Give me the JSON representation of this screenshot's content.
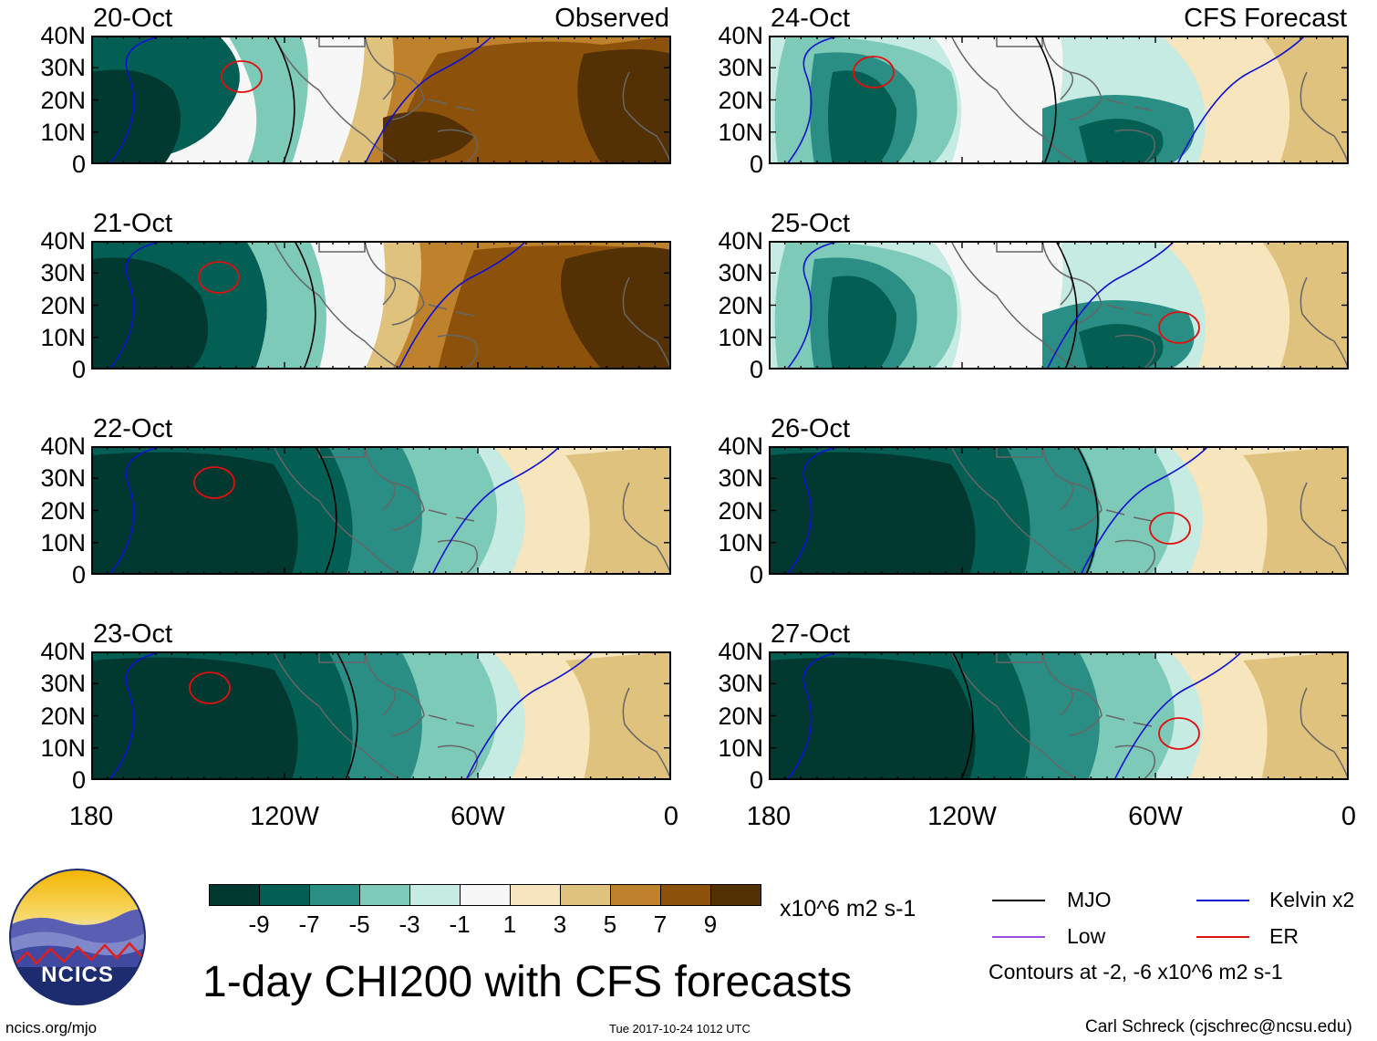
{
  "panels": [
    {
      "date": "20-Oct",
      "title": "Observed",
      "theme": "brown"
    },
    {
      "date": "21-Oct",
      "title": "",
      "theme": "mixed"
    },
    {
      "date": "22-Oct",
      "title": "",
      "theme": "green"
    },
    {
      "date": "23-Oct",
      "title": "",
      "theme": "green"
    },
    {
      "date": "24-Oct",
      "title": "CFS Forecast",
      "theme": "teal"
    },
    {
      "date": "25-Oct",
      "title": "",
      "theme": "teal"
    },
    {
      "date": "26-Oct",
      "title": "",
      "theme": "green"
    },
    {
      "date": "27-Oct",
      "title": "",
      "theme": "green"
    }
  ],
  "lat_labels": [
    "40N",
    "30N",
    "20N",
    "10N",
    "0"
  ],
  "lon_labels": [
    "180",
    "120W",
    "60W",
    "0"
  ],
  "colorbar": {
    "colors": [
      "#01382f",
      "#035e54",
      "#2a8e84",
      "#7ecab9",
      "#c6ebe2",
      "#f7f7f7",
      "#f6e5bd",
      "#dfc27d",
      "#bf822c",
      "#8c510a",
      "#543005"
    ],
    "ticks": [
      "-9",
      "-7",
      "-5",
      "-3",
      "-1",
      "1",
      "3",
      "5",
      "7",
      "9"
    ],
    "units": "x10^6 m2 s-1"
  },
  "legend": {
    "mjo": "MJO",
    "kelvin": "Kelvin x2",
    "low": "Low",
    "er": "ER",
    "contours_note": "Contours at -2, -6 x10^6 m2 s-1",
    "colors": {
      "mjo": "#000000",
      "kelvin": "#1010d0",
      "low": "#9b4fe0",
      "er": "#e01010"
    }
  },
  "title": "1-day CHI200 with CFS forecasts",
  "logo_text": "NCICS",
  "footer": {
    "url": "ncics.org/mjo",
    "timestamp": "Tue 2017-10-24 1012 UTC",
    "author": "Carl Schreck (cjschrec@ncsu.edu)"
  }
}
